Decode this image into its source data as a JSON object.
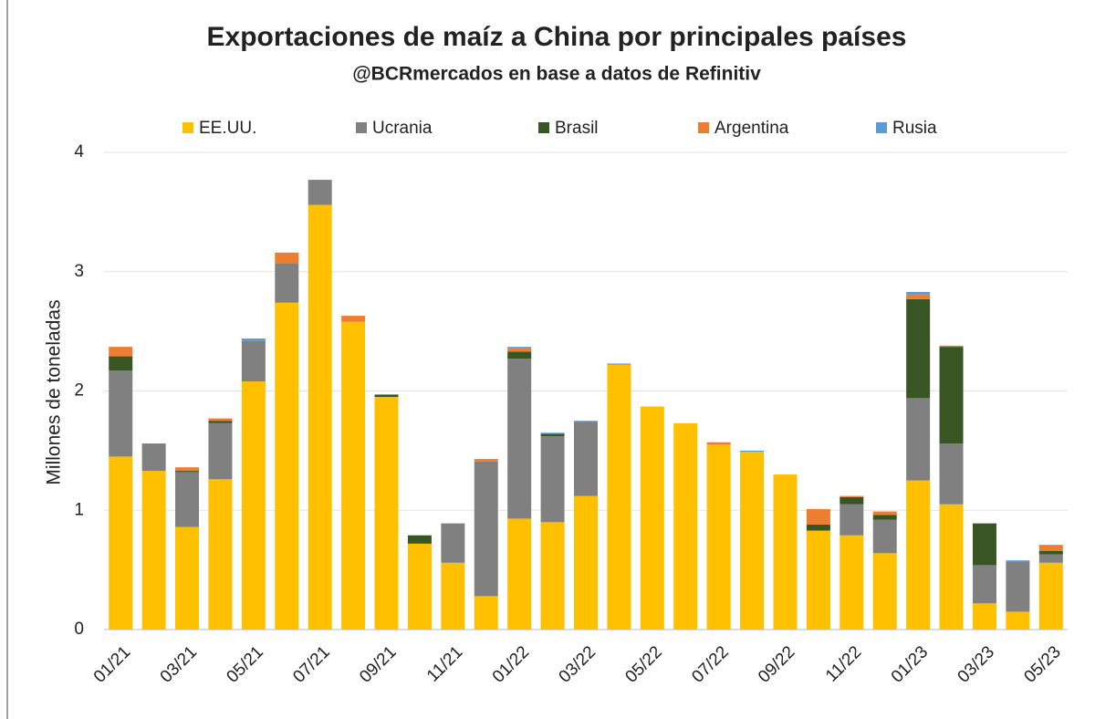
{
  "chart_data": {
    "type": "stacked_bar",
    "title": "Exportaciones de maíz a China por principales países",
    "subtitle": "@BCRmercados en base a datos de Refinitiv",
    "y_label": "Millones de toneladas",
    "categories": [
      "01/21",
      null,
      "03/21",
      null,
      "05/21",
      null,
      "07/21",
      null,
      "09/21",
      null,
      "11/21",
      null,
      "01/22",
      null,
      "03/22",
      null,
      "05/22",
      null,
      "07/22",
      null,
      "09/22",
      null,
      "11/22",
      null,
      "01/23",
      null,
      "03/23",
      null,
      "05/23"
    ],
    "series": [
      {
        "name": "EE.UU.",
        "color": "#ffc000",
        "values": [
          1.45,
          1.33,
          0.86,
          1.26,
          2.08,
          2.74,
          3.56,
          2.58,
          1.95,
          0.72,
          0.56,
          0.28,
          0.93,
          0.9,
          1.12,
          2.22,
          1.87,
          1.73,
          1.55,
          1.49,
          1.3,
          0.83,
          0.79,
          0.64,
          1.25,
          1.05,
          0.22,
          0.15,
          0.56
        ]
      },
      {
        "name": "Ucrania",
        "color": "#808080",
        "values": [
          0.72,
          0.23,
          0.46,
          0.47,
          0.34,
          0.33,
          0.21,
          0,
          0,
          0,
          0.33,
          1.13,
          1.34,
          0.72,
          0.62,
          0,
          0,
          0,
          0,
          0,
          0,
          0,
          0.26,
          0.28,
          0.69,
          0.51,
          0.32,
          0.42,
          0.07
        ]
      },
      {
        "name": "Brasil",
        "color": "#375623",
        "values": [
          0.12,
          0,
          0.01,
          0.02,
          0,
          0,
          0,
          0,
          0.02,
          0.07,
          0,
          0,
          0.06,
          0.02,
          0,
          0,
          0,
          0,
          0,
          0,
          0,
          0.05,
          0.06,
          0.04,
          0.83,
          0.81,
          0.35,
          0,
          0.03
        ]
      },
      {
        "name": "Argentina",
        "color": "#ed7d31",
        "values": [
          0.08,
          0,
          0.03,
          0.02,
          0,
          0.09,
          0,
          0.05,
          0,
          0,
          0,
          0.02,
          0.03,
          0,
          0,
          0,
          0,
          0,
          0.02,
          0,
          0,
          0.13,
          0.01,
          0.03,
          0.04,
          0.01,
          0,
          0,
          0.05
        ]
      },
      {
        "name": "Rusia",
        "color": "#5b9bd5",
        "values": [
          0,
          0,
          0,
          0,
          0.02,
          0,
          0,
          0,
          0,
          0,
          0,
          0,
          0.01,
          0.01,
          0.01,
          0.01,
          0,
          0,
          0,
          0.01,
          0,
          0,
          0,
          0,
          0.02,
          0,
          0,
          0.01,
          0
        ]
      }
    ],
    "ylim": [
      0,
      4
    ],
    "yticks": [
      0,
      1,
      2,
      3,
      4
    ],
    "grid": true,
    "legend": "top"
  }
}
